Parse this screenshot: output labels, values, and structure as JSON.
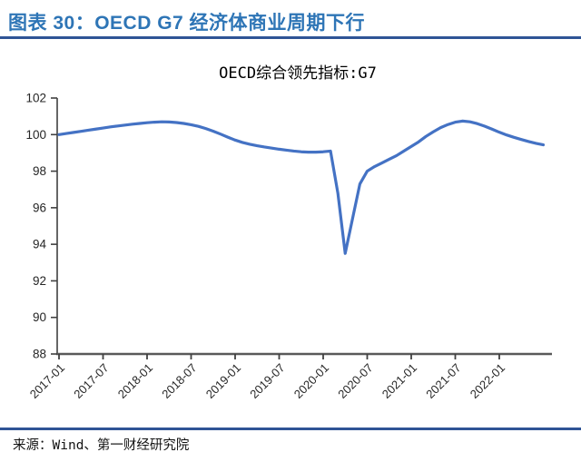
{
  "header": {
    "title": "图表 30：OECD G7 经济体商业周期下行"
  },
  "footer": {
    "source": "来源：Wind、第一财经研究院"
  },
  "colors": {
    "title": "#2E75B6",
    "rule": "#2F5496",
    "line": "#4472C4",
    "axis": "#595959",
    "tick_label": "#262626"
  },
  "chart_data": {
    "type": "line",
    "title": "OECD综合领先指标:G7",
    "xlabel": "",
    "ylabel": "",
    "ylim": [
      88,
      102
    ],
    "y_ticks": [
      88,
      90,
      92,
      94,
      96,
      98,
      100,
      102
    ],
    "x_tick_labels": [
      "2017-01",
      "2017-07",
      "2018-01",
      "2018-07",
      "2019-01",
      "2019-07",
      "2020-01",
      "2020-07",
      "2021-01",
      "2021-07",
      "2022-01"
    ],
    "x_tick_every_months": 6,
    "grid": false,
    "legend_position": "none",
    "x": [
      "2017-01",
      "2017-02",
      "2017-03",
      "2017-04",
      "2017-05",
      "2017-06",
      "2017-07",
      "2017-08",
      "2017-09",
      "2017-10",
      "2017-11",
      "2017-12",
      "2018-01",
      "2018-02",
      "2018-03",
      "2018-04",
      "2018-05",
      "2018-06",
      "2018-07",
      "2018-08",
      "2018-09",
      "2018-10",
      "2018-11",
      "2018-12",
      "2019-01",
      "2019-02",
      "2019-03",
      "2019-04",
      "2019-05",
      "2019-06",
      "2019-07",
      "2019-08",
      "2019-09",
      "2019-10",
      "2019-11",
      "2019-12",
      "2020-01",
      "2020-02",
      "2020-03",
      "2020-04",
      "2020-05",
      "2020-06",
      "2020-07",
      "2020-08",
      "2020-09",
      "2020-10",
      "2020-11",
      "2020-12",
      "2021-01",
      "2021-02",
      "2021-03",
      "2021-04",
      "2021-05",
      "2021-06",
      "2021-07",
      "2021-08",
      "2021-09",
      "2021-10",
      "2021-11",
      "2021-12",
      "2022-01",
      "2022-02",
      "2022-03",
      "2022-04",
      "2022-05",
      "2022-06",
      "2022-07"
    ],
    "series": [
      {
        "name": "OECD综合领先指标:G7",
        "color": "#4472C4",
        "values": [
          100.0,
          100.06,
          100.12,
          100.18,
          100.24,
          100.3,
          100.36,
          100.42,
          100.47,
          100.52,
          100.57,
          100.61,
          100.65,
          100.68,
          100.7,
          100.69,
          100.66,
          100.61,
          100.54,
          100.45,
          100.33,
          100.19,
          100.03,
          99.86,
          99.7,
          99.57,
          99.47,
          99.39,
          99.32,
          99.26,
          99.2,
          99.15,
          99.1,
          99.06,
          99.04,
          99.04,
          99.06,
          99.1,
          96.8,
          93.5,
          95.4,
          97.3,
          98.0,
          98.25,
          98.45,
          98.65,
          98.85,
          99.1,
          99.35,
          99.6,
          99.9,
          100.15,
          100.38,
          100.55,
          100.68,
          100.74,
          100.7,
          100.6,
          100.46,
          100.3,
          100.13,
          99.98,
          99.85,
          99.73,
          99.62,
          99.52,
          99.44
        ]
      }
    ]
  }
}
